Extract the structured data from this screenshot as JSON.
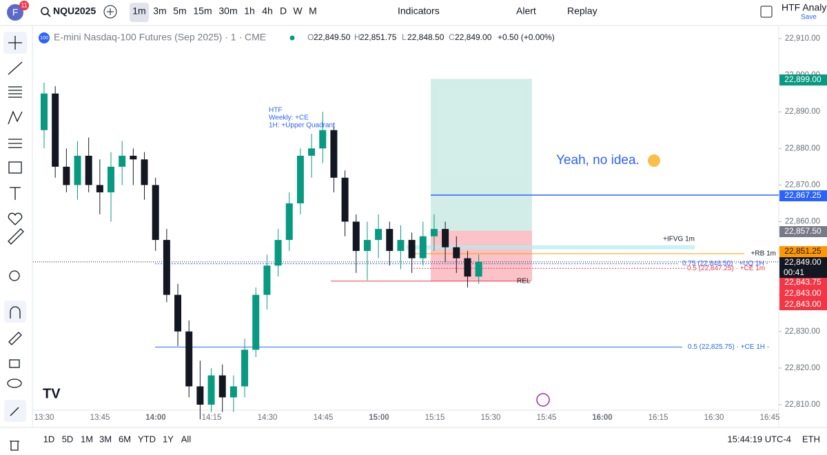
{
  "toolbar": {
    "badge": "11",
    "avatar": "F",
    "symbol": "NQU2025",
    "intervals": [
      "1m",
      "3m",
      "5m",
      "15m",
      "30m",
      "1h",
      "4h",
      "D",
      "W",
      "M"
    ],
    "indicators": "Indicators",
    "alert": "Alert",
    "replay": "Replay",
    "layout_name": "HTF Analys",
    "save": "Save"
  },
  "legend": {
    "exchange_badge": "100",
    "title": "E-mini Nasdaq-100 Futures (Sep 2025) · 1 · CME",
    "o_key": "O",
    "o": "22,849.50",
    "h_key": "H",
    "h": "22,851.75",
    "l_key": "L",
    "l": "22,848.50",
    "c_key": "C",
    "c": "22,849.00",
    "change": "+0.50 (+0.00%)"
  },
  "chart_data": {
    "type": "candlestick",
    "ylim": [
      22812.5,
      22911
    ],
    "yticks": [
      {
        "value": 22910,
        "label": "22,910.00"
      },
      {
        "value": 22900,
        "label": "22,900.00"
      },
      {
        "value": 22890,
        "label": "22,890.00"
      },
      {
        "value": 22880,
        "label": "22,880.00"
      },
      {
        "value": 22870,
        "label": "22,870.00"
      },
      {
        "value": 22860,
        "label": "22,860.00"
      },
      {
        "value": 22850,
        "label": "22,850.00"
      },
      {
        "value": 22840,
        "label": "22,840.00"
      },
      {
        "value": 22830,
        "label": "22,830.00"
      },
      {
        "value": 22820,
        "label": "22,820.00"
      },
      {
        "value": 22810,
        "label": "22,810.00"
      }
    ],
    "x": [
      "13:30",
      "13:45",
      "14:00",
      "14:15",
      "14:30",
      "14:45",
      "15:00",
      "15:15",
      "15:30",
      "15:45",
      "16:00",
      "16:15",
      "16:30",
      "16:45"
    ],
    "ohlc": [
      [
        22885,
        22898,
        22880,
        22895
      ],
      [
        22895,
        22897,
        22872,
        22875
      ],
      [
        22875,
        22880,
        22868,
        22870
      ],
      [
        22870,
        22882,
        22866,
        22878
      ],
      [
        22878,
        22883,
        22868,
        22870
      ],
      [
        22870,
        22877,
        22862,
        22868
      ],
      [
        22868,
        22879,
        22860,
        22875
      ],
      [
        22875,
        22882,
        22870,
        22878
      ],
      [
        22878,
        22880,
        22870,
        22877
      ],
      [
        22877,
        22879,
        22866,
        22870
      ],
      [
        22870,
        22872,
        22852,
        22855
      ],
      [
        22855,
        22858,
        22838,
        22840
      ],
      [
        22840,
        22843,
        22826,
        22830
      ],
      [
        22830,
        22833,
        22812,
        22815
      ],
      [
        22815,
        22822,
        22806,
        22810
      ],
      [
        22810,
        22820,
        22808,
        22818
      ],
      [
        22818,
        22821,
        22808,
        22812
      ],
      [
        22812,
        22818,
        22808,
        22815
      ],
      [
        22815,
        22828,
        22812,
        22825
      ],
      [
        22825,
        22842,
        22823,
        22840
      ],
      [
        22840,
        22851,
        22836,
        22848
      ],
      [
        22848,
        22858,
        22845,
        22855
      ],
      [
        22855,
        22868,
        22852,
        22865
      ],
      [
        22865,
        22880,
        22862,
        22878
      ],
      [
        22878,
        22884,
        22872,
        22880
      ],
      [
        22880,
        22890,
        22876,
        22885
      ],
      [
        22885,
        22887,
        22868,
        22872
      ],
      [
        22872,
        22874,
        22856,
        22860
      ],
      [
        22860,
        22862,
        22846,
        22852
      ],
      [
        22852,
        22860,
        22844,
        22855
      ],
      [
        22855,
        22862,
        22850,
        22858
      ],
      [
        22858,
        22860,
        22848,
        22852
      ],
      [
        22852,
        22859,
        22847,
        22855
      ],
      [
        22855,
        22857,
        22846,
        22850
      ],
      [
        22850,
        22860,
        22848,
        22856
      ],
      [
        22856,
        22862,
        22852,
        22858
      ],
      [
        22858,
        22860,
        22849,
        22853
      ],
      [
        22853,
        22856,
        22846,
        22850
      ],
      [
        22850,
        22852,
        22842,
        22845
      ],
      [
        22845,
        22851,
        22843,
        22849
      ]
    ],
    "price_labels": [
      {
        "value": 22899,
        "label": "22,899.00",
        "color": "#089981"
      },
      {
        "value": 22867.25,
        "label": "22,867.25",
        "color": "#2962ff"
      },
      {
        "value": 22857.5,
        "label": "22,857.50",
        "color": "#787b86"
      },
      {
        "value": 22851.25,
        "label": "22,851.25",
        "color": "#ff9800"
      },
      {
        "value": 22849,
        "label": "22,849.00",
        "color": "#131722"
      },
      {
        "value": 22843.75,
        "label": "22,843.75",
        "color": "#f23645"
      },
      {
        "value": 22843,
        "label": "22,843.00",
        "color": "#f23645"
      },
      {
        "value": 22843,
        "label": "22,843.00",
        "color": "#f23645"
      }
    ],
    "countdown": "00:41",
    "htf_note": [
      "HTF",
      "Weekly: +CE",
      "1H: +Upper Quadrant"
    ],
    "comment": "Yeah, no idea.",
    "levels": [
      {
        "text": "+IFVG 1m",
        "value": 22853
      },
      {
        "text": "+RB 1m",
        "value": 22851.25
      },
      {
        "text": "0.75 (22,848.50) · +UQ 1H -",
        "value": 22848.5
      },
      {
        "text": "0.5 (22,847.25) · +CE 1m",
        "value": 22847.25
      },
      {
        "text": "REL",
        "value": 22843.75
      },
      {
        "text": "0.5 (22,825.75) · +CE 1H -",
        "value": 22825.75
      }
    ]
  },
  "bottom_bar": {
    "ranges": [
      "1D",
      "5D",
      "1M",
      "3M",
      "6M",
      "YTD",
      "1Y",
      "All"
    ],
    "clock": "15:44:19 UTC-4",
    "session": "ETH"
  }
}
